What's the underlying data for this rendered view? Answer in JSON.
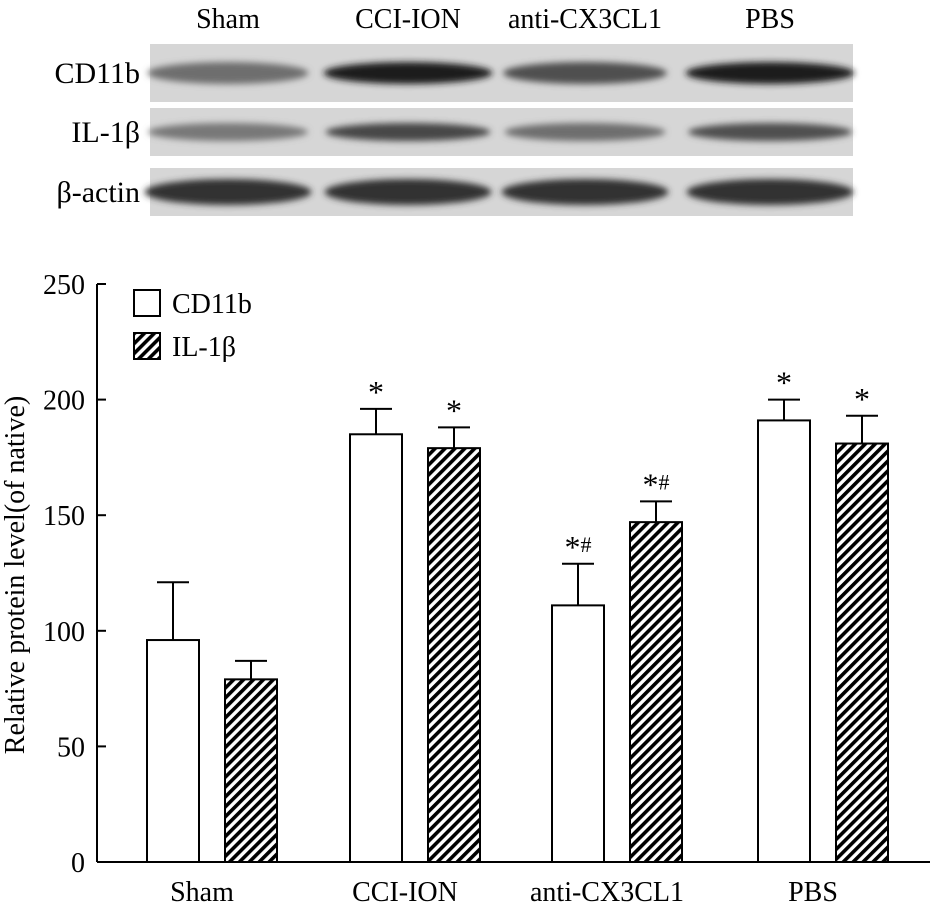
{
  "blot": {
    "lane_labels": [
      "Sham",
      "CCI-ION",
      "anti-CX3CL1",
      "PBS"
    ],
    "rows": [
      {
        "label": "CD11b",
        "band_intensity": [
          0.55,
          0.95,
          0.7,
          0.95
        ]
      },
      {
        "label": "IL-1β",
        "band_intensity": [
          0.5,
          0.75,
          0.55,
          0.7
        ]
      },
      {
        "label": "β-actin",
        "band_intensity": [
          0.85,
          0.85,
          0.85,
          0.85
        ]
      }
    ]
  },
  "chart_data": {
    "type": "bar",
    "categories": [
      "Sham",
      "CCI-ION",
      "anti-CX3CL1",
      "PBS"
    ],
    "series": [
      {
        "name": "CD11b",
        "values": [
          96,
          185,
          111,
          191
        ],
        "errors": [
          25,
          11,
          18,
          9
        ],
        "fill": "open"
      },
      {
        "name": "IL-1β",
        "values": [
          79,
          179,
          147,
          181
        ],
        "errors": [
          8,
          9,
          9,
          12
        ],
        "fill": "hatched"
      }
    ],
    "annotations": [
      [
        "",
        "",
        ""
      ],
      [
        "*",
        "",
        "*"
      ],
      [
        "*",
        "#",
        "*",
        "#"
      ],
      [
        "*",
        "",
        "*"
      ]
    ],
    "annotation_marks": [
      {
        "series": 0,
        "category": 1,
        "text": "*"
      },
      {
        "series": 1,
        "category": 1,
        "text": "*"
      },
      {
        "series": 0,
        "category": 2,
        "text": "*#"
      },
      {
        "series": 1,
        "category": 2,
        "text": "*#"
      },
      {
        "series": 0,
        "category": 3,
        "text": "*"
      },
      {
        "series": 1,
        "category": 3,
        "text": "*"
      }
    ],
    "ylabel": "Relative protein level(of native)",
    "xlabel": "",
    "ylim": [
      0,
      250
    ],
    "yticks": [
      0,
      50,
      100,
      150,
      200,
      250
    ],
    "grid": false,
    "legend_position": "top-left"
  }
}
